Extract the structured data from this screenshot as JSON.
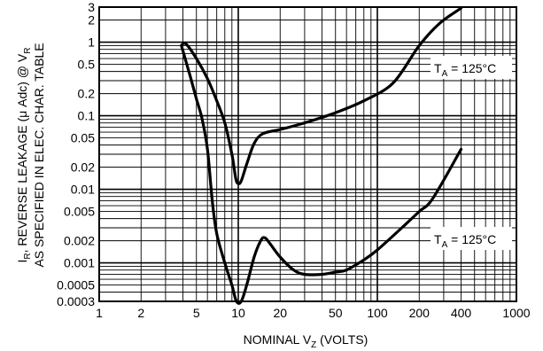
{
  "chart_data": {
    "type": "line",
    "x_scale": "log",
    "y_scale": "log",
    "xlim": [
      1,
      1000
    ],
    "ylim": [
      0.0003,
      3
    ],
    "x_ticks": [
      1,
      2,
      5,
      10,
      20,
      50,
      100,
      200,
      400,
      1000
    ],
    "x_tick_labels": [
      "1",
      "2",
      "5",
      "10",
      "20",
      "50",
      "100",
      "200",
      "400",
      "1000"
    ],
    "y_ticks": [
      3,
      2,
      1,
      0.5,
      0.2,
      0.1,
      0.05,
      0.02,
      0.01,
      0.005,
      0.002,
      0.001,
      0.0005,
      0.0003
    ],
    "y_tick_labels": [
      "3",
      "2",
      "1",
      "0.5",
      "0.2",
      "0.1",
      "0.05",
      "0.02",
      "0.01",
      "0.005",
      "0.002",
      "0.001",
      "0.0005",
      "0.0003"
    ],
    "xlabel": {
      "main": "NOMINAL V",
      "sub": "Z",
      "tail": " (VOLTS)"
    },
    "ylabel_line1": {
      "pre": "I",
      "sub": "R",
      "tail": ", REVERSE LEAKAGE (μ Adc) @ V",
      "sub2": "R"
    },
    "ylabel_line2": "AS SPECIFIED IN ELEC. CHAR. TABLE",
    "grid": true,
    "series": [
      {
        "x": [
          3.9,
          4.2,
          5.0,
          6.0,
          7.0,
          8.0,
          9.0,
          9.6,
          10.0,
          10.5,
          11.5,
          13.0,
          15.0,
          20.0,
          30.0,
          50.0,
          80.0,
          130.0,
          200.0,
          280.0,
          400.0
        ],
        "y": [
          0.9,
          0.95,
          0.6,
          0.32,
          0.16,
          0.08,
          0.03,
          0.014,
          0.012,
          0.013,
          0.022,
          0.042,
          0.057,
          0.065,
          0.08,
          0.11,
          0.16,
          0.28,
          0.9,
          1.8,
          2.9
        ]
      },
      {
        "x": [
          3.9,
          4.5,
          5.0,
          5.5,
          6.0,
          6.5,
          7.0,
          8.0,
          9.0,
          9.7,
          10.5,
          11.5,
          13.0,
          14.5,
          15.5,
          17.0,
          20.0,
          25.0,
          30.0,
          40.0,
          50.0,
          60.0,
          80.0,
          100.0,
          150.0,
          200.0,
          250.0,
          400.0
        ],
        "y": [
          0.9,
          0.35,
          0.17,
          0.09,
          0.035,
          0.007,
          0.0025,
          0.001,
          0.0005,
          0.0003,
          0.0003,
          0.0005,
          0.0012,
          0.002,
          0.0022,
          0.0018,
          0.0012,
          0.0008,
          0.0007,
          0.0007,
          0.00075,
          0.0008,
          0.0011,
          0.0015,
          0.003,
          0.005,
          0.0075,
          0.035
        ]
      }
    ],
    "annotations": [
      {
        "pre": "T",
        "sub": "A",
        "tail": " = 125°C",
        "near_series": 0
      },
      {
        "pre": "T",
        "sub": "A",
        "tail": " = 125°C",
        "near_series": 1
      }
    ]
  }
}
